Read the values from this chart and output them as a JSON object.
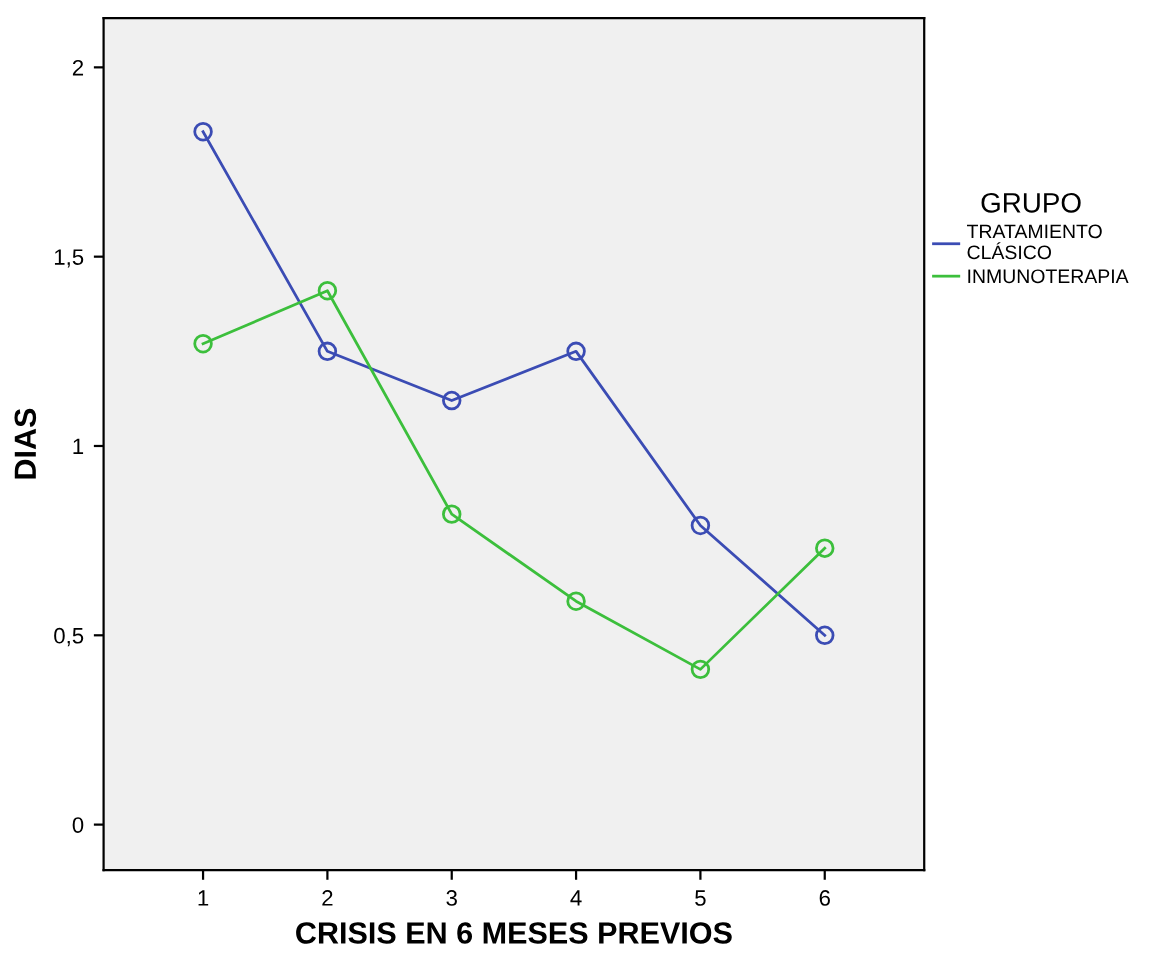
{
  "chart_data": {
    "type": "line",
    "xlabel": "CRISIS EN 6 MESES PREVIOS",
    "ylabel": "DIAS",
    "legend_title": "GRUPO",
    "categories": [
      "1",
      "2",
      "3",
      "4",
      "5",
      "6"
    ],
    "series": [
      {
        "name": "TRATAMIENTO\nCLÁSICO",
        "color": "#3b4cb4",
        "values": [
          1.83,
          1.25,
          1.12,
          1.25,
          0.79,
          0.5
        ]
      },
      {
        "name": "INMUNOTERAPIA",
        "color": "#3cbf3c",
        "values": [
          1.27,
          1.41,
          0.82,
          0.59,
          0.41,
          0.73
        ]
      }
    ],
    "ylim": [
      -0.12,
      2.13
    ],
    "yticks": [
      0,
      {
        "value": 0.5,
        "label": "0,5"
      },
      1,
      {
        "value": 1.5,
        "label": "1,5"
      },
      2
    ],
    "grid": false,
    "legend": "right",
    "marker": "circle",
    "line_style": "solid"
  }
}
